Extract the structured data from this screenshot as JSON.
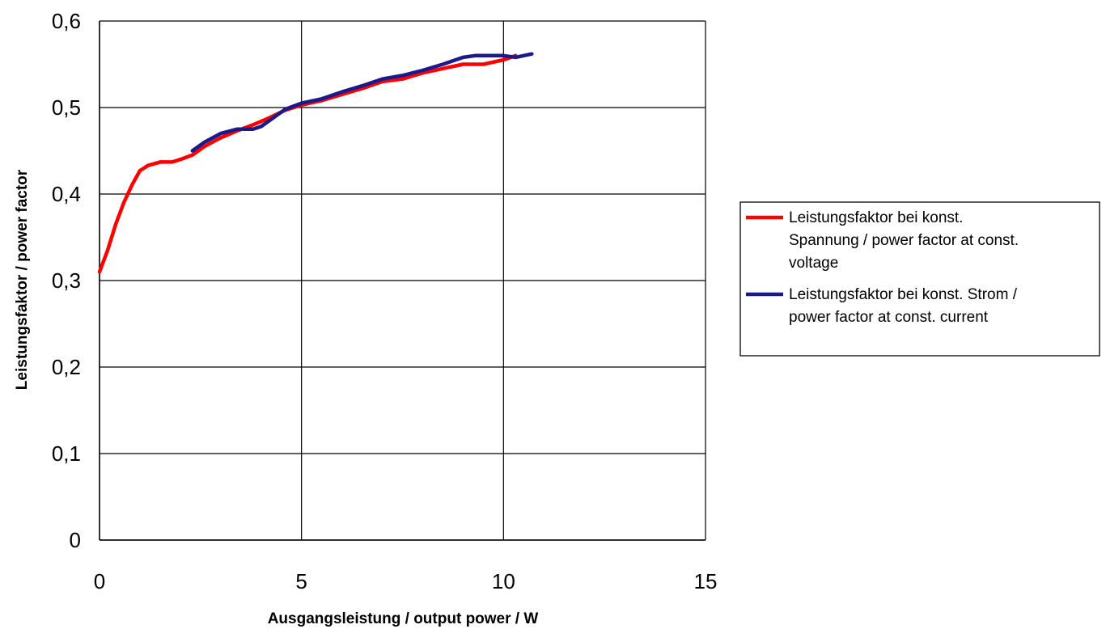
{
  "chart_data": {
    "type": "line",
    "xlabel": "Ausgangsleistung / output power / W",
    "ylabel": "Leistungsfaktor / power factor",
    "xlim": [
      0,
      15
    ],
    "ylim": [
      0,
      0.6
    ],
    "x_ticks": [
      0,
      5,
      10,
      15
    ],
    "x_tick_labels": [
      "0",
      "5",
      "10",
      "15"
    ],
    "y_ticks": [
      0,
      0.1,
      0.2,
      0.3,
      0.4,
      0.5,
      0.6
    ],
    "y_tick_labels": [
      "0",
      "0,1",
      "0,2",
      "0,3",
      "0,4",
      "0,5",
      "0,6"
    ],
    "grid": true,
    "legend_position": "right",
    "series": [
      {
        "name_lines": [
          "Leistungsfaktor bei konst.",
          "Spannung / power factor at const.",
          "voltage"
        ],
        "color": "#ff0000",
        "x": [
          0,
          0.2,
          0.4,
          0.6,
          0.8,
          1.0,
          1.2,
          1.5,
          1.8,
          2.0,
          2.3,
          2.6,
          3.0,
          3.4,
          3.8,
          4.2,
          4.6,
          5.0,
          5.5,
          6.0,
          6.5,
          7.0,
          7.5,
          8.0,
          8.5,
          9.0,
          9.5,
          10.0,
          10.3
        ],
        "y": [
          0.31,
          0.335,
          0.365,
          0.39,
          0.41,
          0.427,
          0.433,
          0.437,
          0.437,
          0.44,
          0.445,
          0.455,
          0.465,
          0.473,
          0.48,
          0.488,
          0.497,
          0.503,
          0.508,
          0.515,
          0.522,
          0.53,
          0.533,
          0.54,
          0.545,
          0.55,
          0.55,
          0.555,
          0.56
        ]
      },
      {
        "name_lines": [
          "Leistungsfaktor bei konst. Strom /",
          "power factor at const. current"
        ],
        "color": "#1a1a8c",
        "x": [
          2.3,
          2.6,
          3.0,
          3.4,
          3.8,
          4.0,
          4.3,
          4.6,
          5.0,
          5.5,
          6.0,
          6.5,
          7.0,
          7.5,
          8.0,
          8.5,
          9.0,
          9.3,
          9.6,
          10.0,
          10.3,
          10.5,
          10.7
        ],
        "y": [
          0.45,
          0.46,
          0.47,
          0.475,
          0.475,
          0.478,
          0.488,
          0.498,
          0.505,
          0.51,
          0.518,
          0.525,
          0.533,
          0.537,
          0.543,
          0.55,
          0.558,
          0.56,
          0.56,
          0.56,
          0.558,
          0.56,
          0.562
        ]
      }
    ]
  }
}
